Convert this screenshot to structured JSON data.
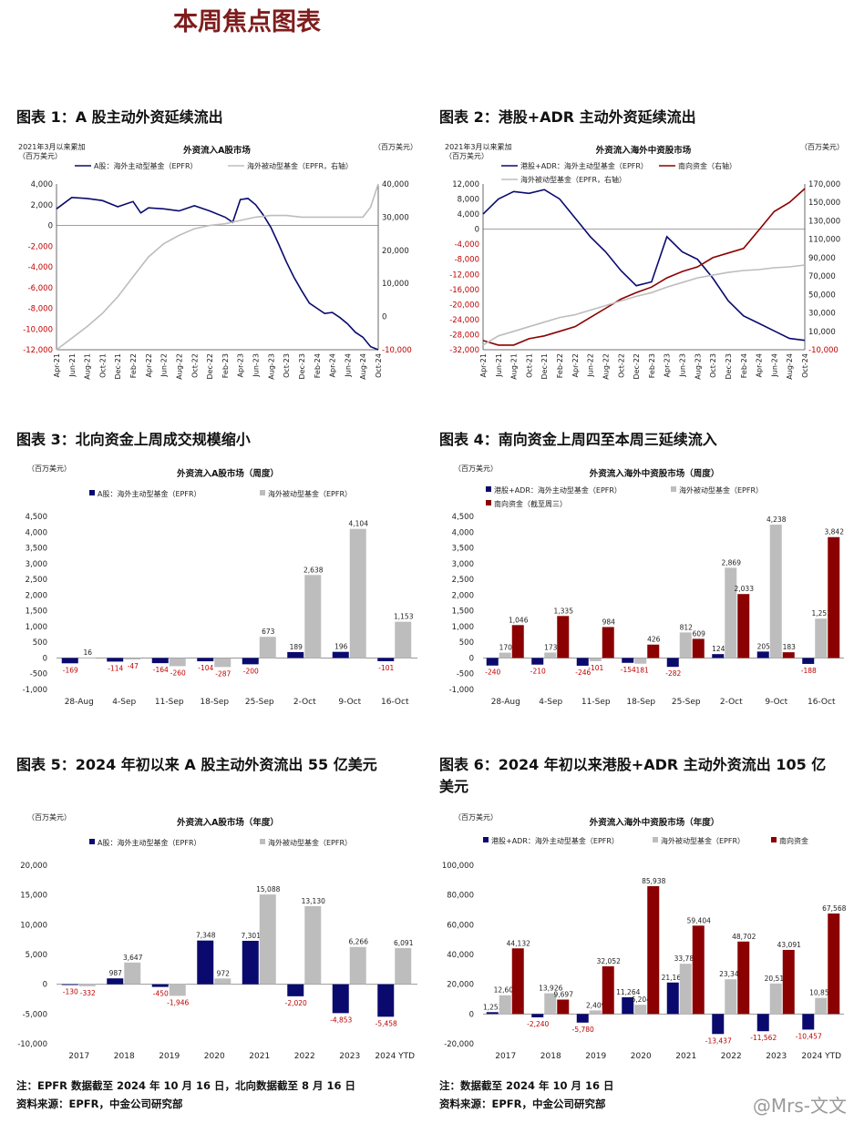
{
  "page_title": "本周焦点图表",
  "colors": {
    "navy": "#0a0a6e",
    "gray": "#bdbdbd",
    "darkred": "#8b0000",
    "neg": "#c00000"
  },
  "figures": [
    {
      "heading": "图表 1：A 股主动外资延续流出"
    },
    {
      "heading": "图表 2：港股+ADR 主动外资延续流出"
    },
    {
      "heading": "图表 3：北向资金上周成交规模缩小"
    },
    {
      "heading": "图表 4：南向资金上周四至本周三延续流入"
    },
    {
      "heading": "图表 5：2024 年初以来 A 股主动外资流出 55 亿美元"
    },
    {
      "heading": "图表 6：2024 年初以来港股+ADR 主动外资流出 105 亿美元"
    }
  ],
  "notes": {
    "left_note": "注：EPFR 数据截至 2024 年 10 月 16 日，北向数据截至 8 月 16 日",
    "left_source": "资料来源：EPFR，中金公司研究部",
    "right_note": "注：数据截至 2024 年 10 月 16 日",
    "right_source": "资料来源：EPFR，中金公司研究部"
  },
  "watermark": "@Mrs-文文",
  "chart_data": [
    {
      "type": "line",
      "title": "外资流入A股市场",
      "left_unit": "2021年3月以来累加\n（百万美元）",
      "right_unit": "（百万美元）",
      "ylim_left": [
        -12000,
        4000
      ],
      "ylim_right": [
        -10000,
        40000
      ],
      "yticks_left": [
        "4,000",
        "2,000",
        "0",
        "-2,000",
        "-4,000",
        "-6,000",
        "-8,000",
        "-10,000",
        "-12,000"
      ],
      "yticks_right": [
        "40,000",
        "30,000",
        "20,000",
        "10,000",
        "0",
        "-10,000"
      ],
      "xticks": [
        "Apr-21",
        "Jun-21",
        "Aug-21",
        "Oct-21",
        "Dec-21",
        "Feb-22",
        "Apr-22",
        "Jun-22",
        "Aug-22",
        "Oct-22",
        "Dec-22",
        "Feb-23",
        "Apr-23",
        "Jun-23",
        "Aug-23",
        "Oct-23",
        "Dec-23",
        "Feb-24",
        "Apr-24",
        "Jun-24",
        "Aug-24",
        "Oct-24"
      ],
      "series": [
        {
          "name": "A股：海外主动型基金（EPFR）",
          "axis": "left",
          "color": "#0a0a6e",
          "x": [
            0,
            2,
            4,
            6,
            8,
            10,
            11,
            12,
            14,
            16,
            18,
            20,
            22,
            23,
            24,
            25,
            26,
            27,
            28,
            29,
            30,
            31,
            32,
            33,
            34,
            35,
            36,
            37,
            38,
            39,
            40,
            41,
            42
          ],
          "values": [
            1600,
            2700,
            2600,
            2400,
            1800,
            2300,
            1200,
            1700,
            1600,
            1400,
            1900,
            1400,
            800,
            300,
            2500,
            2600,
            2000,
            1000,
            -200,
            -1800,
            -3500,
            -5000,
            -6300,
            -7500,
            -8000,
            -8500,
            -8400,
            -8900,
            -9500,
            -10300,
            -10800,
            -11700,
            -12000
          ]
        },
        {
          "name": "海外被动型基金（EPFR，右轴）",
          "axis": "right",
          "color": "#bdbdbd",
          "x": [
            0,
            2,
            4,
            6,
            8,
            10,
            12,
            14,
            16,
            18,
            20,
            22,
            24,
            26,
            28,
            30,
            32,
            34,
            36,
            38,
            40,
            41,
            42
          ],
          "values": [
            -10000,
            -6500,
            -3000,
            1000,
            6000,
            12000,
            18000,
            22000,
            24500,
            26500,
            27500,
            28000,
            29000,
            30000,
            30500,
            30500,
            30000,
            30000,
            30000,
            30000,
            30000,
            33000,
            40000
          ]
        }
      ]
    },
    {
      "type": "line",
      "title": "外资流入海外中资股市场",
      "left_unit": "2021年3月以来累加\n（百万美元）",
      "right_unit": "（百万美元）",
      "ylim_left": [
        -32000,
        12000
      ],
      "ylim_right": [
        -10000,
        170000
      ],
      "yticks_left": [
        "12,000",
        "8,000",
        "4,000",
        "0",
        "-4,000",
        "-8,000",
        "-12,000",
        "-16,000",
        "-20,000",
        "-24,000",
        "-28,000",
        "-32,000"
      ],
      "yticks_right": [
        "170,000",
        "150,000",
        "130,000",
        "110,000",
        "90,000",
        "70,000",
        "50,000",
        "30,000",
        "10,000",
        "-10,000"
      ],
      "xticks": [
        "Apr-21",
        "Jun-21",
        "Aug-21",
        "Oct-21",
        "Dec-21",
        "Feb-22",
        "Apr-22",
        "Jun-22",
        "Aug-22",
        "Oct-22",
        "Dec-22",
        "Feb-23",
        "Apr-23",
        "Jun-23",
        "Aug-23",
        "Oct-23",
        "Dec-23",
        "Feb-24",
        "Apr-24",
        "Jun-24",
        "Aug-24",
        "Oct-24"
      ],
      "series": [
        {
          "name": "港股+ADR：海外主动型基金（EPFR）",
          "axis": "left",
          "color": "#0a0a6e",
          "x": [
            0,
            2,
            4,
            6,
            8,
            10,
            12,
            14,
            16,
            18,
            20,
            22,
            24,
            26,
            28,
            30,
            32,
            34,
            36,
            38,
            40,
            42
          ],
          "values": [
            4000,
            8000,
            10000,
            9500,
            10500,
            8000,
            3000,
            -2000,
            -6000,
            -11000,
            -15000,
            -14000,
            -2000,
            -6000,
            -8000,
            -13000,
            -19000,
            -23000,
            -25000,
            -27000,
            -29000,
            -29500
          ]
        },
        {
          "name": "南向资金（右轴）",
          "axis": "right",
          "color": "#8b0000",
          "x": [
            0,
            2,
            4,
            6,
            8,
            10,
            12,
            14,
            16,
            18,
            20,
            22,
            24,
            26,
            28,
            30,
            32,
            34,
            36,
            38,
            40,
            42
          ],
          "values": [
            0,
            -5000,
            -5000,
            2000,
            5000,
            10000,
            15000,
            25000,
            35000,
            45000,
            52000,
            58000,
            68000,
            75000,
            80000,
            90000,
            95000,
            100000,
            120000,
            140000,
            150000,
            165000
          ]
        },
        {
          "name": "海外被动型基金（EPFR，右轴）",
          "axis": "right",
          "color": "#bdbdbd",
          "x": [
            0,
            2,
            4,
            6,
            8,
            10,
            12,
            14,
            16,
            18,
            20,
            22,
            24,
            26,
            28,
            30,
            32,
            34,
            36,
            38,
            40,
            42
          ],
          "values": [
            -5000,
            5000,
            10000,
            15000,
            20000,
            25000,
            28000,
            33000,
            38000,
            43000,
            48000,
            52000,
            58000,
            63000,
            68000,
            71000,
            74000,
            76000,
            77000,
            79000,
            80000,
            82000
          ]
        }
      ]
    },
    {
      "type": "bar",
      "title": "外资流入A股市场（周度）",
      "unit": "（百万美元）",
      "ylim": [
        -1000,
        4500
      ],
      "yticks": [
        "4,500",
        "4,000",
        "3,500",
        "3,000",
        "2,500",
        "2,000",
        "1,500",
        "1,000",
        "500",
        "0",
        "-500",
        "-1,000"
      ],
      "categories": [
        "28-Aug",
        "4-Sep",
        "11-Sep",
        "18-Sep",
        "25-Sep",
        "2-Oct",
        "9-Oct",
        "16-Oct"
      ],
      "series": [
        {
          "name": "A股：海外主动型基金（EPFR）",
          "color": "#0a0a6e",
          "values": [
            -169,
            -114,
            -164,
            -104,
            -200,
            189,
            196,
            -101
          ],
          "labels": [
            "-169",
            "-114",
            "-164",
            "-104",
            "-200",
            "189",
            "196",
            "-101"
          ]
        },
        {
          "name": "海外被动型基金（EPFR）",
          "color": "#bdbdbd",
          "values": [
            16,
            -47,
            -260,
            -287,
            673,
            2638,
            4104,
            1153
          ],
          "labels": [
            "16",
            "-47",
            "-260",
            "-287",
            "673",
            "2,638",
            "4,104",
            "1,153"
          ]
        }
      ]
    },
    {
      "type": "bar",
      "title": "外资流入海外中资股市场（周度）",
      "unit": "（百万美元）",
      "ylim": [
        -1000,
        4500
      ],
      "yticks": [
        "4,500",
        "4,000",
        "3,500",
        "3,000",
        "2,500",
        "2,000",
        "1,500",
        "1,000",
        "500",
        "0",
        "-500",
        "-1,000"
      ],
      "categories": [
        "28-Aug",
        "4-Sep",
        "11-Sep",
        "18-Sep",
        "25-Sep",
        "2-Oct",
        "9-Oct",
        "16-Oct"
      ],
      "series": [
        {
          "name": "港股+ADR：海外主动型基金（EPFR）",
          "color": "#0a0a6e",
          "values": [
            -240,
            -210,
            -246,
            -154,
            -282,
            124,
            205,
            -188
          ],
          "labels": [
            "-240",
            "-210",
            "-246",
            "-154",
            "-282",
            "124",
            "205",
            "-188"
          ]
        },
        {
          "name": "海外被动型基金（EPFR）",
          "color": "#bdbdbd",
          "values": [
            170,
            173,
            -101,
            -181,
            812,
            2869,
            4238,
            1251
          ],
          "labels": [
            "170",
            "173",
            "-101",
            "-181",
            "812",
            "2,869",
            "4,238",
            "1,251"
          ]
        },
        {
          "name": "南向资金（截至周三）",
          "color": "#8b0000",
          "values": [
            1046,
            1335,
            984,
            426,
            609,
            2033,
            183,
            3842
          ],
          "labels": [
            "1,046",
            "1,335",
            "984",
            "426",
            "609",
            "2,033",
            "183",
            "3,842"
          ]
        }
      ]
    },
    {
      "type": "bar",
      "title": "外资流入A股市场（年度）",
      "unit": "（百万美元）",
      "ylim": [
        -10000,
        20000
      ],
      "yticks": [
        "20,000",
        "15,000",
        "10,000",
        "5,000",
        "0",
        "-5,000",
        "-10,000"
      ],
      "categories": [
        "2017",
        "2018",
        "2019",
        "2020",
        "2021",
        "2022",
        "2023",
        "2024 YTD"
      ],
      "series": [
        {
          "name": "A股：海外主动型基金（EPFR）",
          "color": "#0a0a6e",
          "values": [
            -130,
            987,
            -450,
            7348,
            7301,
            -2020,
            -4853,
            -5458
          ],
          "labels": [
            "-130",
            "987",
            "-450",
            "7,348",
            "7,301",
            "-2,020",
            "-4,853",
            "-5,458"
          ]
        },
        {
          "name": "海外被动型基金（EPFR）",
          "color": "#bdbdbd",
          "values": [
            -332,
            3647,
            -1946,
            972,
            15088,
            13130,
            6266,
            6091
          ],
          "labels": [
            "-332",
            "3,647",
            "-1,946",
            "972",
            "15,088",
            "13,130",
            "6,266",
            "6,091"
          ]
        }
      ]
    },
    {
      "type": "bar",
      "title": "外资流入海外中资股市场（年度）",
      "unit": "（百万美元）",
      "ylim": [
        -20000,
        100000
      ],
      "yticks": [
        "100,000",
        "80,000",
        "60,000",
        "40,000",
        "20,000",
        "0",
        "-20,000"
      ],
      "categories": [
        "2017",
        "2018",
        "2019",
        "2020",
        "2021",
        "2022",
        "2023",
        "2024 YTD"
      ],
      "series": [
        {
          "name": "港股+ADR：海外主动型基金（EPFR）",
          "color": "#0a0a6e",
          "values": [
            1253,
            -2240,
            -5780,
            11264,
            21165,
            -13437,
            -11562,
            -10457
          ],
          "labels": [
            "1,253",
            "-2,240",
            "-5,780",
            "11,264",
            "21,165",
            "-13,437",
            "-11,562",
            "-10,457"
          ]
        },
        {
          "name": "海外被动型基金（EPFR）",
          "color": "#bdbdbd",
          "values": [
            12609,
            13926,
            2409,
            6204,
            33786,
            23349,
            20511,
            10859
          ],
          "labels": [
            "12,609",
            "13,926",
            "2,409",
            "6,204",
            "33,786",
            "23,349",
            "20,511",
            "10,859"
          ]
        },
        {
          "name": "南向资金",
          "color": "#8b0000",
          "values": [
            44132,
            9697,
            32052,
            85938,
            59404,
            48702,
            43091,
            67568
          ],
          "labels": [
            "44,132",
            "9,697",
            "32,052",
            "85,938",
            "59,404",
            "48,702",
            "43,091",
            "67,568"
          ]
        }
      ]
    }
  ]
}
